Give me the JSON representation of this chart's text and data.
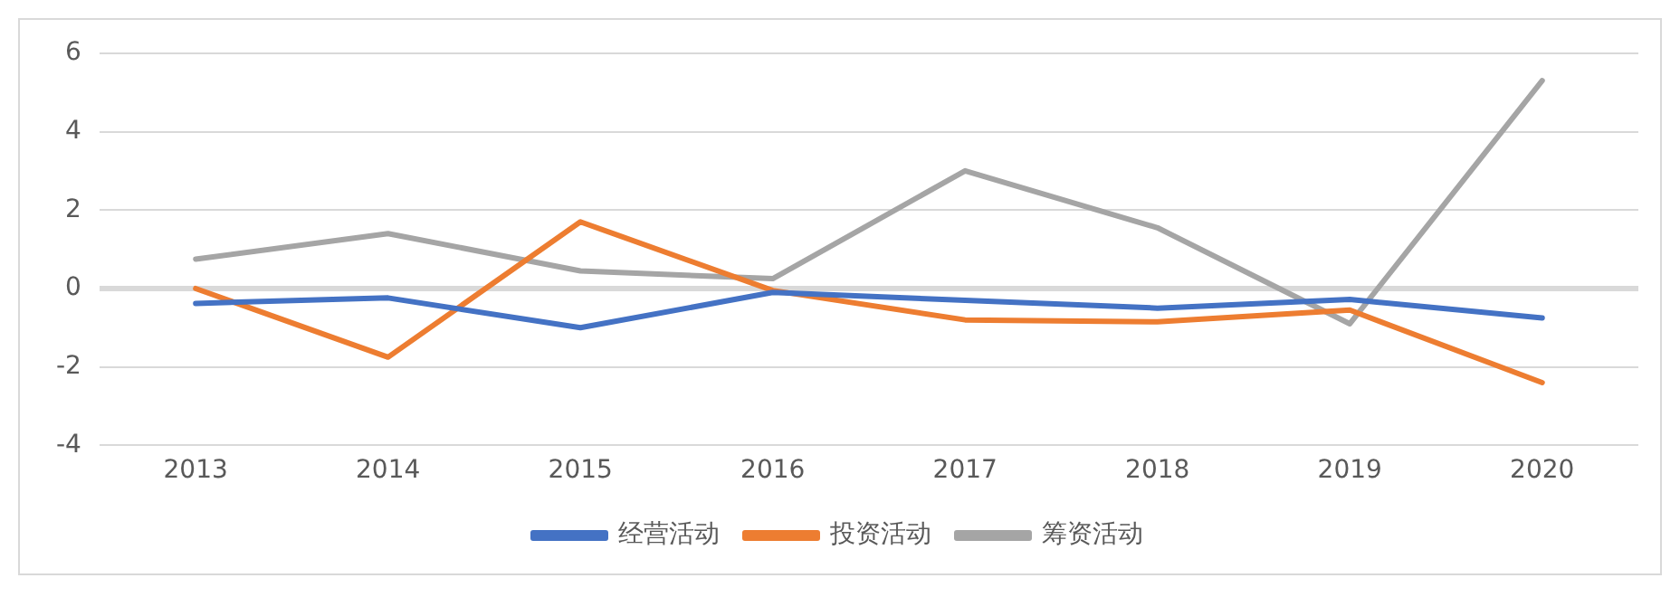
{
  "chart_data": {
    "type": "line",
    "categories": [
      "2013",
      "2014",
      "2015",
      "2016",
      "2017",
      "2018",
      "2019",
      "2020"
    ],
    "series": [
      {
        "name": "经营活动",
        "color": "#4472c4",
        "values": [
          -0.38,
          -0.24,
          -1.0,
          -0.1,
          -0.3,
          -0.5,
          -0.28,
          -0.75
        ]
      },
      {
        "name": "投资活动",
        "color": "#ed7d31",
        "values": [
          0,
          -1.75,
          1.7,
          -0.05,
          -0.8,
          -0.85,
          -0.55,
          -2.4
        ]
      },
      {
        "name": "筹资活动",
        "color": "#a5a5a5",
        "values": [
          0.75,
          1.4,
          0.45,
          0.25,
          3.0,
          1.55,
          -0.9,
          5.3
        ]
      }
    ],
    "ylim": [
      -4,
      6
    ],
    "yticks": [
      -4,
      -2,
      0,
      2,
      4,
      6
    ],
    "grid": "y",
    "legend": "bottom",
    "marker": "none",
    "line_style": "solid"
  }
}
